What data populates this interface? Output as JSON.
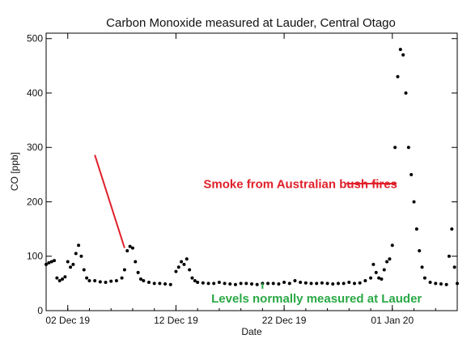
{
  "chart_data": {
    "type": "scatter",
    "title": "Carbon Monoxide measured at Lauder, Central Otago",
    "xlabel": "Date",
    "ylabel": "CO [ppb]",
    "ylim": [
      0,
      510
    ],
    "xlim": [
      "2019-11-30",
      "2020-01-07"
    ],
    "x_ticks": [
      {
        "date": "2019-12-02",
        "label": "02 Dec 19"
      },
      {
        "date": "2019-12-12",
        "label": "12 Dec 19"
      },
      {
        "date": "2019-12-22",
        "label": "22 Dec 19"
      },
      {
        "date": "2020-01-01",
        "label": "01 Jan 20"
      }
    ],
    "y_ticks": [
      0,
      100,
      200,
      300,
      400,
      500
    ],
    "grid": false,
    "series": [
      {
        "color": "#000000",
        "x": [
          "2019-11-30",
          "2019-11-30T06",
          "2019-11-30T12",
          "2019-11-30T18",
          "2019-12-01",
          "2019-12-01T06",
          "2019-12-01T12",
          "2019-12-01T18",
          "2019-12-02",
          "2019-12-02T06",
          "2019-12-02T12",
          "2019-12-02T18",
          "2019-12-03",
          "2019-12-03T06",
          "2019-12-03T12",
          "2019-12-03T18",
          "2019-12-04",
          "2019-12-04T12",
          "2019-12-05",
          "2019-12-05T12",
          "2019-12-06",
          "2019-12-06T12",
          "2019-12-07",
          "2019-12-07T06",
          "2019-12-07T12",
          "2019-12-07T18",
          "2019-12-08",
          "2019-12-08T06",
          "2019-12-08T12",
          "2019-12-08T18",
          "2019-12-09",
          "2019-12-09T12",
          "2019-12-10",
          "2019-12-10T12",
          "2019-12-11",
          "2019-12-11T12",
          "2019-12-12",
          "2019-12-12T06",
          "2019-12-12T12",
          "2019-12-12T18",
          "2019-12-13",
          "2019-12-13T06",
          "2019-12-13T12",
          "2019-12-13T18",
          "2019-12-14",
          "2019-12-14T12",
          "2019-12-15",
          "2019-12-15T12",
          "2019-12-16",
          "2019-12-16T12",
          "2019-12-17",
          "2019-12-17T12",
          "2019-12-18",
          "2019-12-18T12",
          "2019-12-19",
          "2019-12-19T12",
          "2019-12-20",
          "2019-12-20T12",
          "2019-12-21",
          "2019-12-21T12",
          "2019-12-22",
          "2019-12-22T12",
          "2019-12-23",
          "2019-12-23T12",
          "2019-12-24",
          "2019-12-24T12",
          "2019-12-25",
          "2019-12-25T12",
          "2019-12-26",
          "2019-12-26T12",
          "2019-12-27",
          "2019-12-27T12",
          "2019-12-28",
          "2019-12-28T12",
          "2019-12-29",
          "2019-12-29T12",
          "2019-12-30",
          "2019-12-30T06",
          "2019-12-30T12",
          "2019-12-30T18",
          "2019-12-31",
          "2019-12-31T06",
          "2019-12-31T12",
          "2019-12-31T18",
          "2020-01-01",
          "2020-01-01T06",
          "2020-01-01T12",
          "2020-01-01T18",
          "2020-01-02",
          "2020-01-02T06",
          "2020-01-02T12",
          "2020-01-02T18",
          "2020-01-03",
          "2020-01-03T06",
          "2020-01-03T12",
          "2020-01-03T18",
          "2020-01-04",
          "2020-01-04T12",
          "2020-01-05",
          "2020-01-05T12",
          "2020-01-06",
          "2020-01-06T06",
          "2020-01-06T12",
          "2020-01-06T18",
          "2020-01-07"
        ],
        "y": [
          85,
          88,
          90,
          92,
          60,
          55,
          58,
          62,
          90,
          80,
          85,
          105,
          120,
          100,
          75,
          60,
          55,
          55,
          53,
          52,
          54,
          55,
          60,
          75,
          110,
          118,
          115,
          90,
          70,
          58,
          55,
          52,
          50,
          50,
          49,
          48,
          72,
          80,
          90,
          85,
          95,
          75,
          60,
          55,
          52,
          51,
          50,
          50,
          52,
          50,
          49,
          48,
          50,
          50,
          49,
          48,
          50,
          50,
          50,
          49,
          52,
          50,
          55,
          52,
          51,
          50,
          50,
          51,
          50,
          49,
          50,
          50,
          52,
          50,
          51,
          55,
          60,
          85,
          70,
          60,
          58,
          75,
          90,
          95,
          120,
          300,
          430,
          480,
          470,
          400,
          300,
          250,
          200,
          150,
          110,
          80,
          60,
          52,
          50,
          49,
          48,
          100,
          150,
          80,
          50
        ]
      }
    ],
    "annotations": [
      {
        "text": "Smoke from Australian bush fires",
        "color": "#e0202a",
        "x": "2019-12-23T12",
        "y": 225,
        "arrow_from": [
          "2019-12-04T12",
          78
        ],
        "arrow_to": [
          "2019-12-07T06",
          130
        ]
      },
      {
        "text": "Levels normally measured at Lauder",
        "color": "#2aa845",
        "x": "2019-12-25",
        "y": 15,
        "marker_at": [
          "2019-12-20",
          38
        ]
      }
    ]
  }
}
